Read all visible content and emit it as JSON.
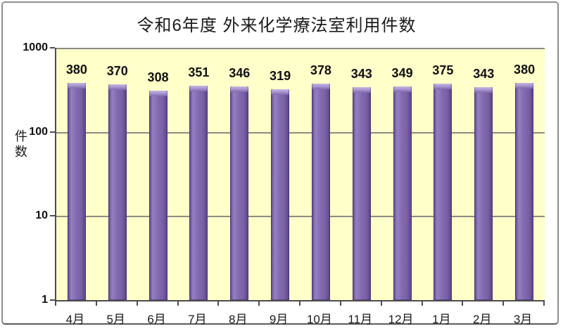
{
  "window": {
    "title": "令和6年度 外来化学療法室利用件数"
  },
  "chart_data": {
    "type": "bar",
    "title": "令和6年度 外来化学療法室利用件数",
    "categories": [
      "4月",
      "5月",
      "6月",
      "7月",
      "8月",
      "9月",
      "10月",
      "11月",
      "12月",
      "1月",
      "2月",
      "3月"
    ],
    "values": [
      380,
      370,
      308,
      351,
      346,
      319,
      378,
      343,
      349,
      375,
      343,
      380
    ],
    "xlabel": "",
    "ylabel": "件数",
    "y_scale": "log",
    "ylim": [
      1,
      1000
    ],
    "y_tick_labels": [
      "1000",
      "100",
      "10",
      "1"
    ],
    "gridlines_at": [
      1000,
      100,
      10
    ],
    "data_labels_shown": true,
    "legend": "none",
    "colors": {
      "plot_background": "#FFFFC9",
      "bar_fill": "#8269AF",
      "bar_edge_dark": "#5A4282",
      "bar_cap_highlight": "#C6B7E2",
      "gridline": "#8B8B85",
      "axis": "#4D4D4D",
      "text": "#111111",
      "outer_border": "#8F8F8F"
    }
  }
}
